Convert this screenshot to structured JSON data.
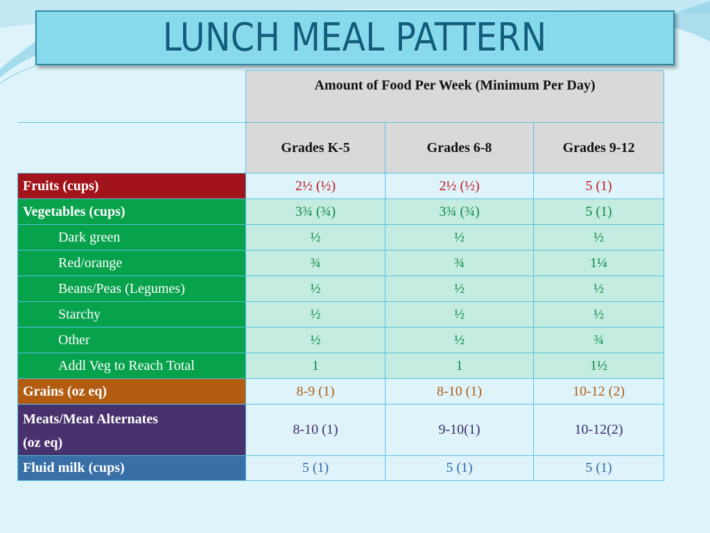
{
  "title": "LUNCH MEAL PATTERN",
  "table": {
    "amount_header": "Amount of Food Per Week  (Minimum Per Day)",
    "grades": [
      "Grades K-5",
      "Grades 6-8",
      "Grades 9-12"
    ],
    "rows": [
      {
        "label": "Fruits (cups)",
        "values": [
          "2½ (½)",
          "2½ (½)",
          "5 (1)"
        ]
      },
      {
        "label": "Vegetables (cups)",
        "values": [
          "3¾ (¾)",
          "3¾ (¾)",
          "5 (1)"
        ]
      },
      {
        "label": "Dark green",
        "values": [
          "½",
          "½",
          "½"
        ]
      },
      {
        "label": "Red/orange",
        "values": [
          "¾",
          "¾",
          "1¼"
        ]
      },
      {
        "label": "Beans/Peas (Legumes)",
        "values": [
          "½",
          "½",
          "½"
        ]
      },
      {
        "label": "Starchy",
        "values": [
          "½",
          "½",
          "½"
        ]
      },
      {
        "label": "Other",
        "values": [
          "½",
          "½",
          "¾"
        ]
      },
      {
        "label": "Addl Veg to Reach Total",
        "values": [
          "1",
          "1",
          "1½"
        ]
      },
      {
        "label": "Grains (oz eq)",
        "values": [
          "8-9 (1)",
          "8-10 (1)",
          "10-12 (2)"
        ]
      },
      {
        "label_line1": "Meats/Meat Alternates",
        "label_line2": "(oz eq)",
        "values": [
          "8-10 (1)",
          "9-10(1)",
          "10-12(2)"
        ]
      },
      {
        "label": "Fluid milk (cups)",
        "values": [
          "5 (1)",
          "5 (1)",
          "5 (1)"
        ]
      }
    ]
  },
  "colors": {
    "fruits": "#a3131b",
    "vegetables": "#08a24d",
    "grains": "#b25c12",
    "meats": "#48326e",
    "milk": "#376fa6",
    "title_bar": "#87d9ec",
    "title_text": "#0f5f7c"
  }
}
